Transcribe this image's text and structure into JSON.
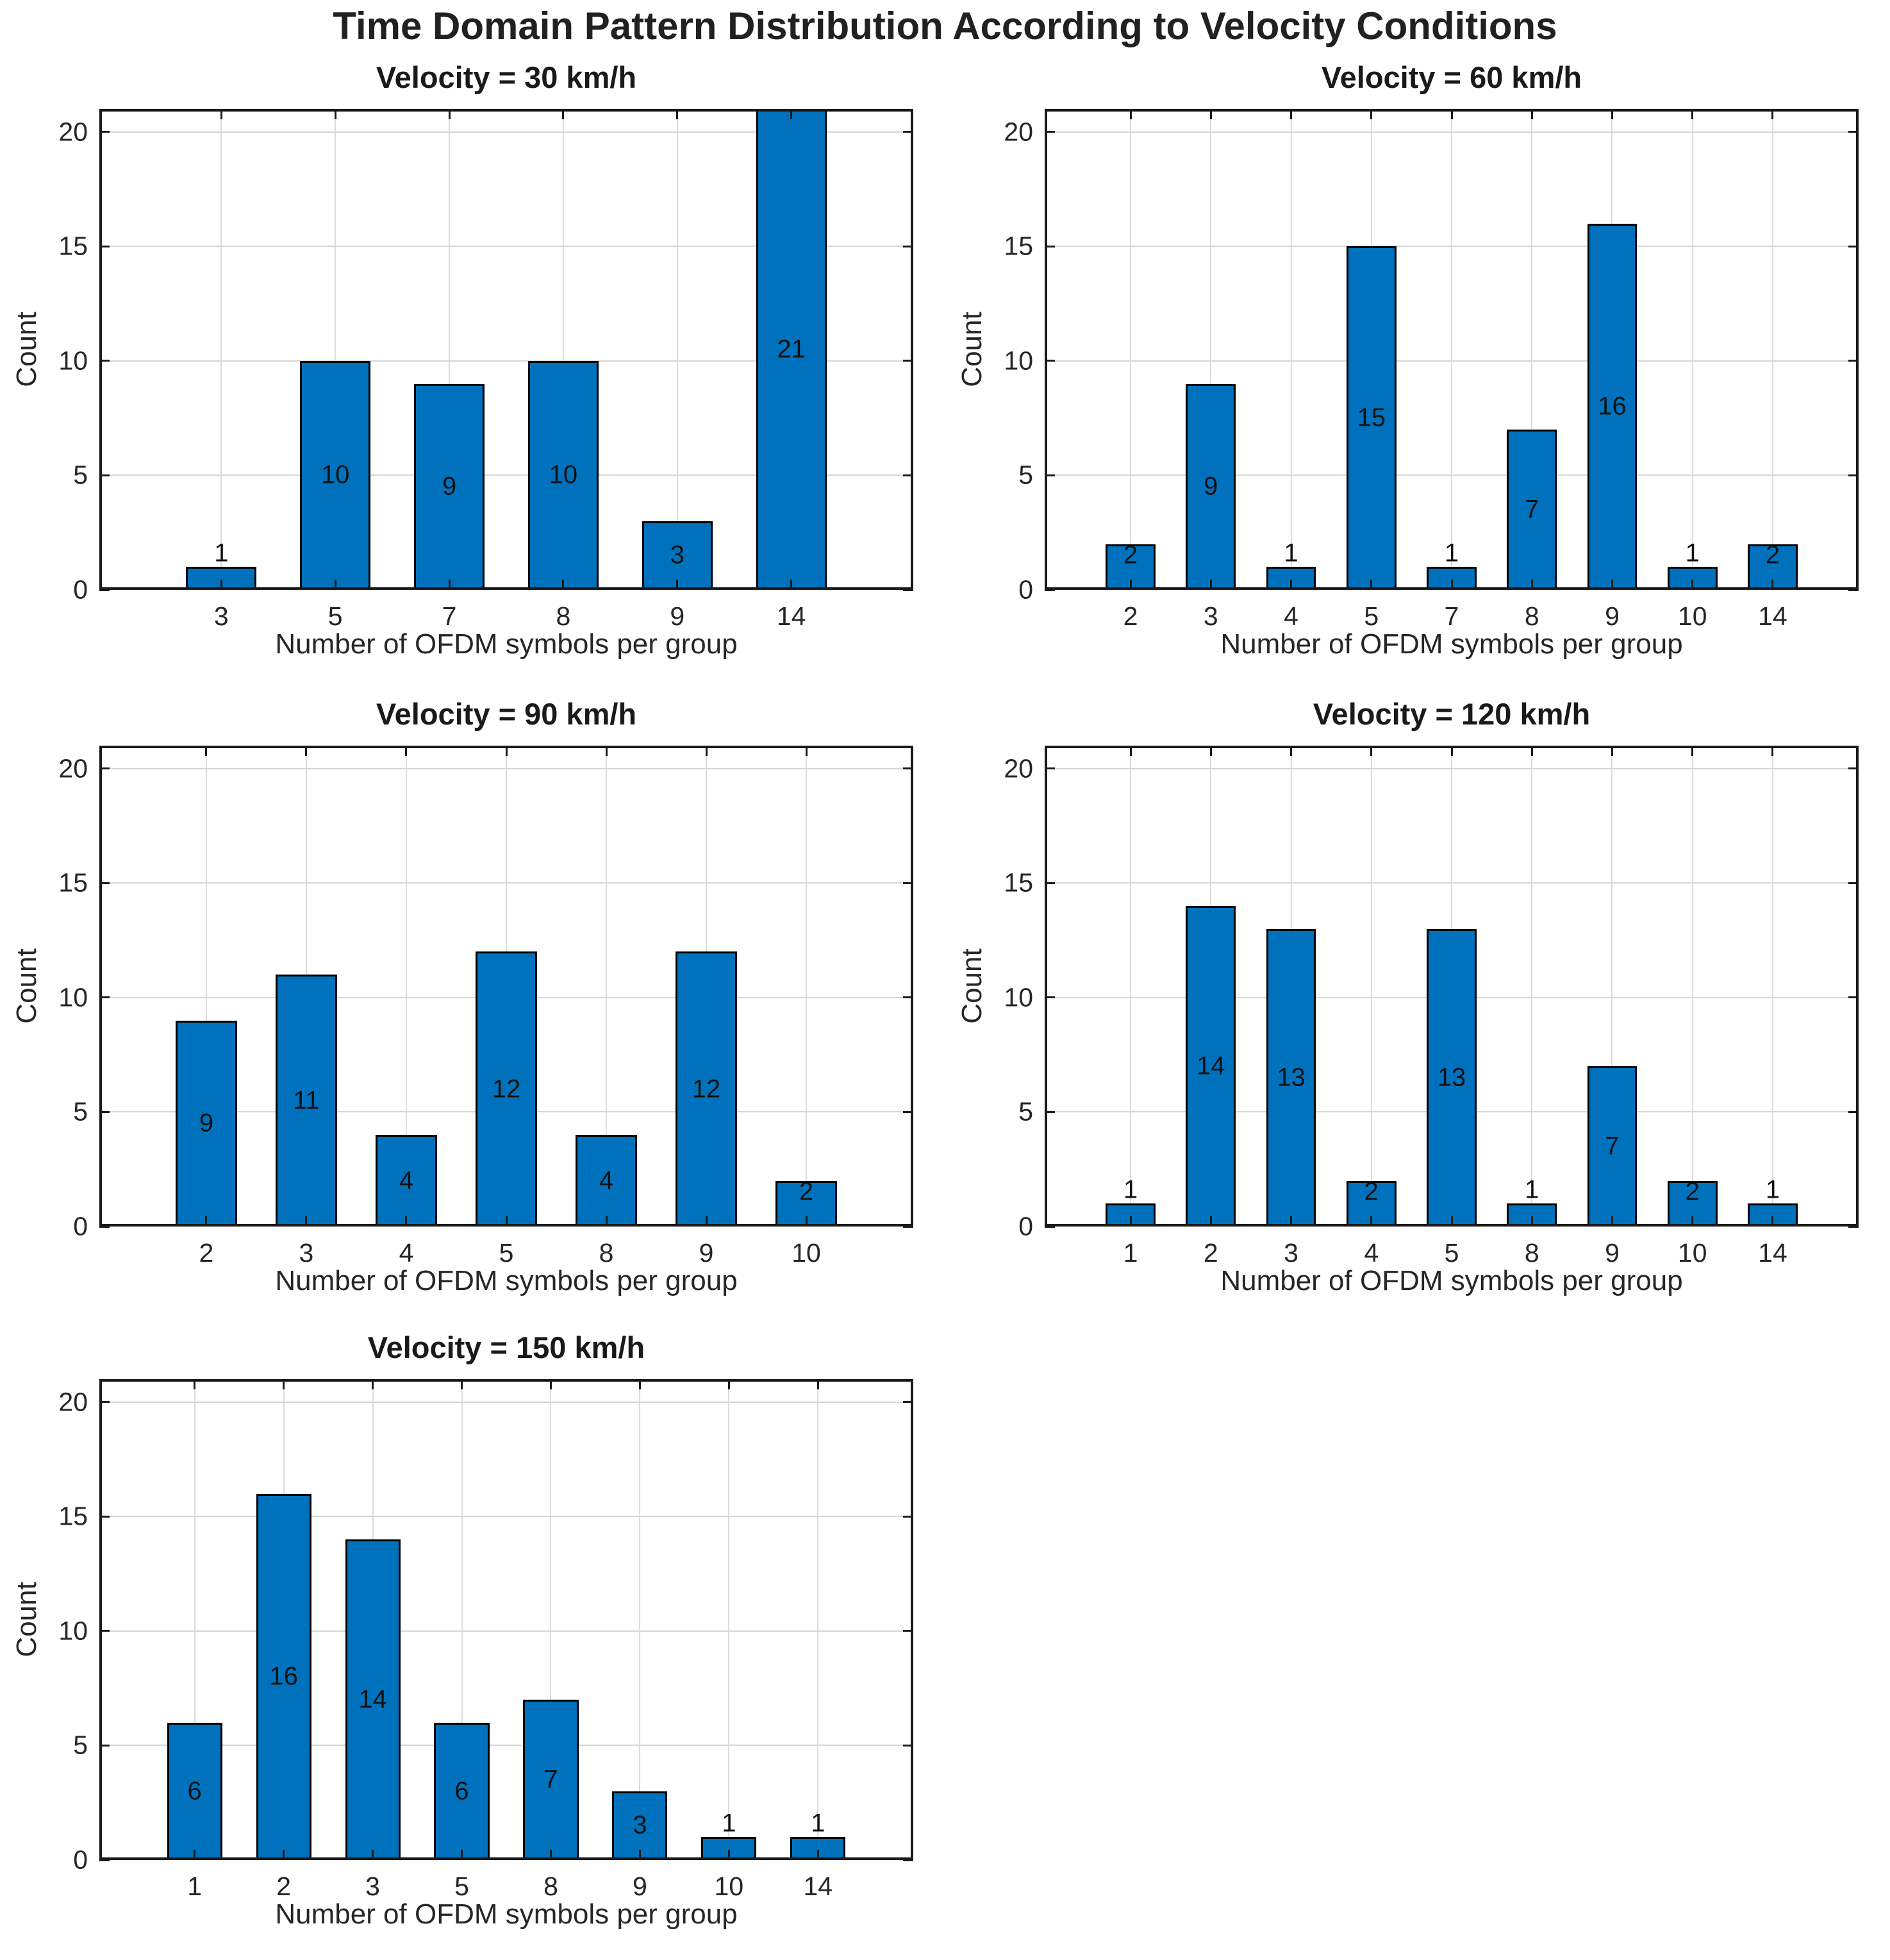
{
  "main_title": "Time Domain Pattern Distribution According to Velocity Conditions",
  "colors": {
    "bar_fill": "#0072BD",
    "bar_edge": "#000000",
    "grid_h": "#d6d6d6",
    "grid_v": "#dcdcdc",
    "axis": "#1a1a1a",
    "text": "#262626",
    "bar_label": "#111111"
  },
  "chart_data": [
    {
      "type": "bar",
      "title": "Velocity = 30 km/h",
      "categories": [
        "3",
        "5",
        "7",
        "8",
        "9",
        "14"
      ],
      "values": [
        1,
        10,
        9,
        10,
        3,
        21
      ],
      "xlabel": "Number of OFDM symbols per group",
      "ylabel": "Count",
      "ylim": [
        0,
        21
      ],
      "yticks": [
        0,
        5,
        10,
        15,
        20
      ],
      "grid": "on",
      "value_labels": [
        "1",
        "10",
        "9",
        "10",
        "3",
        "21"
      ]
    },
    {
      "type": "bar",
      "title": "Velocity = 60 km/h",
      "categories": [
        "2",
        "3",
        "4",
        "5",
        "7",
        "8",
        "9",
        "10",
        "14"
      ],
      "values": [
        2,
        9,
        1,
        15,
        1,
        7,
        16,
        1,
        2
      ],
      "xlabel": "Number of OFDM symbols per group",
      "ylabel": "Count",
      "ylim": [
        0,
        21
      ],
      "yticks": [
        0,
        5,
        10,
        15,
        20
      ],
      "grid": "on",
      "value_labels": [
        "2",
        "9",
        "1",
        "15",
        "1",
        "7",
        "16",
        "1",
        "2"
      ]
    },
    {
      "type": "bar",
      "title": "Velocity = 90 km/h",
      "categories": [
        "2",
        "3",
        "4",
        "5",
        "8",
        "9",
        "10"
      ],
      "values": [
        9,
        11,
        4,
        12,
        4,
        12,
        2
      ],
      "xlabel": "Number of OFDM symbols per group",
      "ylabel": "Count",
      "ylim": [
        0,
        21
      ],
      "yticks": [
        0,
        5,
        10,
        15,
        20
      ],
      "grid": "on",
      "value_labels": [
        "9",
        "11",
        "4",
        "12",
        "4",
        "12",
        "2"
      ]
    },
    {
      "type": "bar",
      "title": "Velocity = 120 km/h",
      "categories": [
        "1",
        "2",
        "3",
        "4",
        "5",
        "8",
        "9",
        "10",
        "14"
      ],
      "values": [
        1,
        14,
        13,
        2,
        13,
        1,
        7,
        2,
        1
      ],
      "xlabel": "Number of OFDM symbols per group",
      "ylabel": "Count",
      "ylim": [
        0,
        21
      ],
      "yticks": [
        0,
        5,
        10,
        15,
        20
      ],
      "grid": "on",
      "value_labels": [
        "1",
        "14",
        "13",
        "2",
        "13",
        "1",
        "7",
        "2",
        "1"
      ]
    },
    {
      "type": "bar",
      "title": "Velocity = 150 km/h",
      "categories": [
        "1",
        "2",
        "3",
        "5",
        "8",
        "9",
        "10",
        "14"
      ],
      "values": [
        6,
        16,
        14,
        6,
        7,
        3,
        1,
        1
      ],
      "xlabel": "Number of OFDM symbols per group",
      "ylabel": "Count",
      "ylim": [
        0,
        21
      ],
      "yticks": [
        0,
        5,
        10,
        15,
        20
      ],
      "grid": "on",
      "value_labels": [
        "6",
        "16",
        "14",
        "6",
        "7",
        "3",
        "1",
        "1"
      ]
    }
  ]
}
